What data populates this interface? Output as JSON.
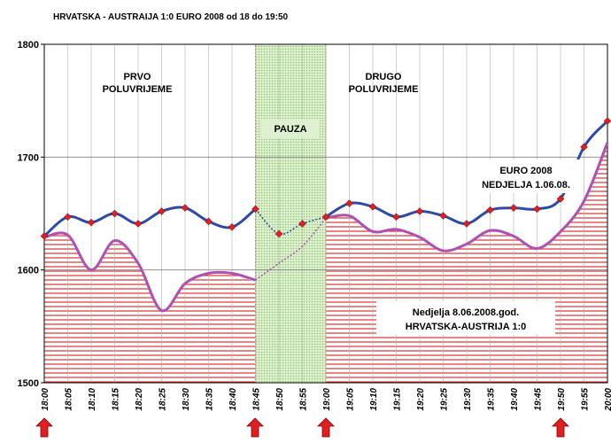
{
  "chart_data": {
    "type": "line",
    "title": "HRVATSKA - AUSTRAIJA  1:0     EURO 2008 od 18 do 19:50",
    "categories": [
      "18:00",
      "18:05",
      "18:10",
      "18:15",
      "18:20",
      "18:25",
      "18:30",
      "18:35",
      "18:40",
      "18:45",
      "18:50",
      "18:55",
      "19:00",
      "19:05",
      "19:10",
      "19:15",
      "19:20",
      "19:25",
      "19:30",
      "19:35",
      "19:40",
      "19:45",
      "19:50",
      "19:55",
      "20:00"
    ],
    "series": [
      {
        "color": "#2e4aa8",
        "marker_color": "#e02020",
        "values": [
          1630,
          1647,
          1642,
          1650,
          1641,
          1652,
          1655,
          1643,
          1638,
          1654,
          1632,
          1641,
          1647,
          1659,
          1656,
          1647,
          1652,
          1648,
          1641,
          1653,
          1655,
          1654,
          1663,
          1709,
          1732
        ]
      },
      {
        "color": "#b050b0",
        "fill": "#e03030",
        "values": [
          1629,
          1631,
          1600,
          1626,
          1606,
          1564,
          1588,
          1597,
          1597,
          1591,
          1606,
          1621,
          1646,
          1648,
          1634,
          1636,
          1629,
          1617,
          1623,
          1635,
          1630,
          1619,
          1634,
          1661,
          1713
        ]
      }
    ],
    "annotations": [
      "PRVO",
      "POLUVRIJEME",
      "DRUGO",
      "POLUVRIJEME",
      "PAUZA",
      "EURO 2008",
      "NEDJELJA 1.06.08.",
      "Nedjelja 8.06.2008.god.",
      "HRVATSKA-AUSTRIJA 1:0"
    ],
    "ylim": [
      1500,
      1800
    ],
    "yticks": [
      1500,
      1600,
      1700,
      1800
    ],
    "grid": true
  }
}
